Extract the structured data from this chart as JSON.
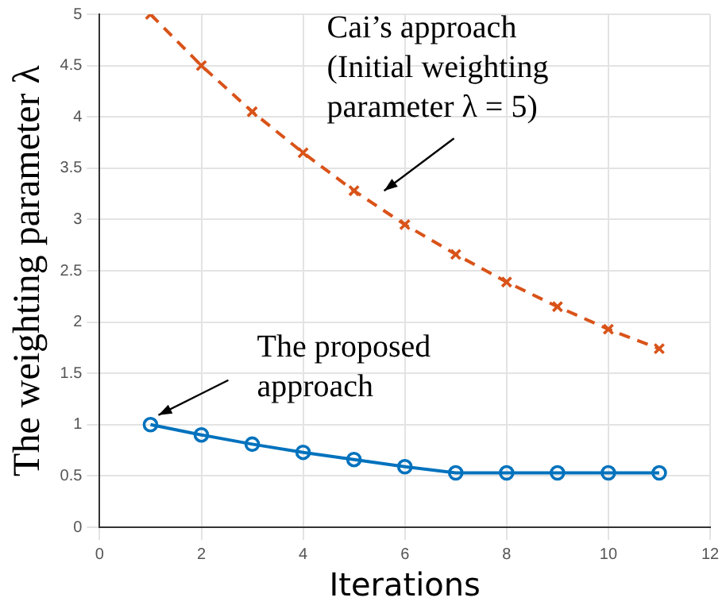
{
  "chart_data": {
    "type": "line",
    "xlabel": "Iterations",
    "ylabel": "The weighting parameter λ",
    "x": [
      1,
      2,
      3,
      4,
      5,
      6,
      7,
      8,
      9,
      10,
      11
    ],
    "series": [
      {
        "color": "#d95319",
        "marker": "cross",
        "line_style": "dashed",
        "values": [
          5,
          4.5,
          4.05,
          3.65,
          3.28,
          2.95,
          2.66,
          2.39,
          2.15,
          1.93,
          1.74
        ]
      },
      {
        "color": "#0072bd",
        "marker": "circle",
        "line_style": "solid",
        "values": [
          1,
          0.9,
          0.81,
          0.73,
          0.66,
          0.59,
          0.53,
          0.53,
          0.53,
          0.53,
          0.53
        ]
      }
    ],
    "xlim": [
      0,
      12
    ],
    "xticks": [
      0,
      2,
      4,
      6,
      8,
      10,
      12
    ],
    "ylim": [
      0,
      5
    ],
    "yticks": [
      0,
      0.5,
      1,
      1.5,
      2,
      2.5,
      3,
      3.5,
      4,
      4.5,
      5
    ],
    "grid": true,
    "legend": false,
    "annotations": [
      "Cai’s approach\n(Initial weighting\nparameter λ = 5)",
      {
        "text": "The proposed\napproach",
        "x": 1,
        "y": 1
      }
    ]
  }
}
